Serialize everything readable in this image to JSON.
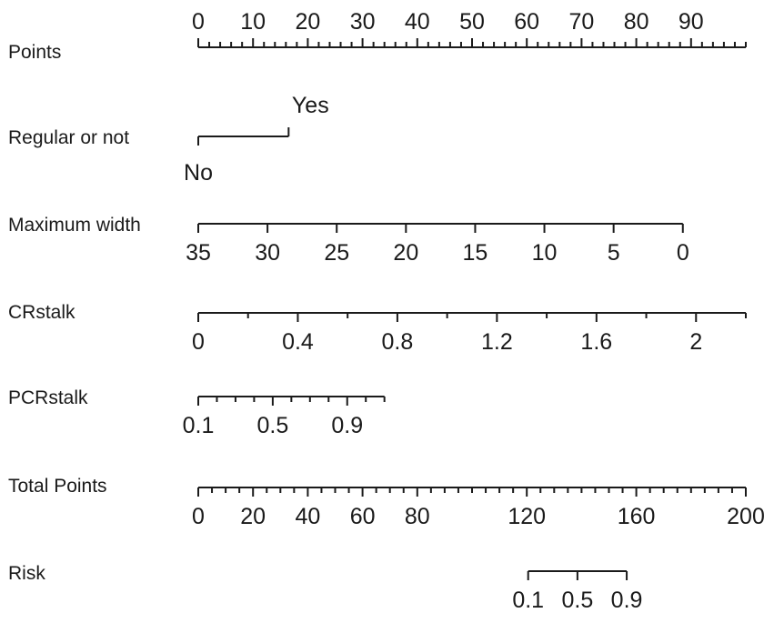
{
  "chart_data": {
    "type": "nomogram",
    "rows": [
      {
        "label": "Points",
        "min": 0,
        "max": 100,
        "minor_step": 2,
        "labeled_ticks": [
          {
            "value": 0,
            "text": "0"
          },
          {
            "value": 10,
            "text": "10"
          },
          {
            "value": 20,
            "text": "20"
          },
          {
            "value": 30,
            "text": "30"
          },
          {
            "value": 40,
            "text": "40"
          },
          {
            "value": 50,
            "text": "50"
          },
          {
            "value": 60,
            "text": "60"
          },
          {
            "value": 70,
            "text": "70"
          },
          {
            "value": 80,
            "text": "80"
          },
          {
            "value": 90,
            "text": "90"
          }
        ],
        "label_position": "above"
      },
      {
        "label": "Regular or not",
        "type": "categorical",
        "categories": [
          {
            "text": "No",
            "points": 0,
            "label_position": "below"
          },
          {
            "text": "Yes",
            "points": 16.5,
            "label_position": "above"
          }
        ]
      },
      {
        "label": "Maximum width",
        "variable_min": 0,
        "variable_max": 35,
        "points_at_min": 88.5,
        "points_at_max": 0,
        "minor_step": 5,
        "labeled_ticks": [
          {
            "value": 35,
            "text": "35"
          },
          {
            "value": 30,
            "text": "30"
          },
          {
            "value": 25,
            "text": "25"
          },
          {
            "value": 20,
            "text": "20"
          },
          {
            "value": 15,
            "text": "15"
          },
          {
            "value": 10,
            "text": "10"
          },
          {
            "value": 5,
            "text": "5"
          },
          {
            "value": 0,
            "text": "0"
          }
        ],
        "label_position": "below"
      },
      {
        "label": "CRstalk",
        "variable_min": 0,
        "variable_max": 2.2,
        "points_at_min": 0,
        "points_at_max": 100,
        "minor_step": 0.2,
        "labeled_ticks": [
          {
            "value": 0,
            "text": "0"
          },
          {
            "value": 0.4,
            "text": "0.4"
          },
          {
            "value": 0.8,
            "text": "0.8"
          },
          {
            "value": 1.2,
            "text": "1.2"
          },
          {
            "value": 1.6,
            "text": "1.6"
          },
          {
            "value": 2,
            "text": "2"
          }
        ],
        "label_position": "below"
      },
      {
        "label": "PCRstalk",
        "variable_min": 0.1,
        "variable_max": 1.1,
        "points_at_min": 0,
        "points_at_max": 34,
        "minor_step": 0.1,
        "labeled_ticks": [
          {
            "value": 0.1,
            "text": "0.1"
          },
          {
            "value": 0.5,
            "text": "0.5"
          },
          {
            "value": 0.9,
            "text": "0.9"
          }
        ],
        "label_position": "below"
      },
      {
        "label": "Total Points",
        "min": 0,
        "max": 200,
        "minor_step": 5,
        "labeled_ticks": [
          {
            "value": 0,
            "text": "0"
          },
          {
            "value": 20,
            "text": "20"
          },
          {
            "value": 40,
            "text": "40"
          },
          {
            "value": 60,
            "text": "60"
          },
          {
            "value": 80,
            "text": "80"
          },
          {
            "value": 120,
            "text": "120"
          },
          {
            "value": 160,
            "text": "160"
          },
          {
            "value": 200,
            "text": "200"
          }
        ],
        "label_position": "below"
      },
      {
        "label": "Risk",
        "total_points_range": [
          120.5,
          156.5
        ],
        "ticks": [
          {
            "text": "0.1",
            "total_points": 120.5
          },
          {
            "text": "0.5",
            "total_points": 138.5
          },
          {
            "text": "0.9",
            "total_points": 156.5
          }
        ],
        "label_position": "below"
      }
    ]
  }
}
